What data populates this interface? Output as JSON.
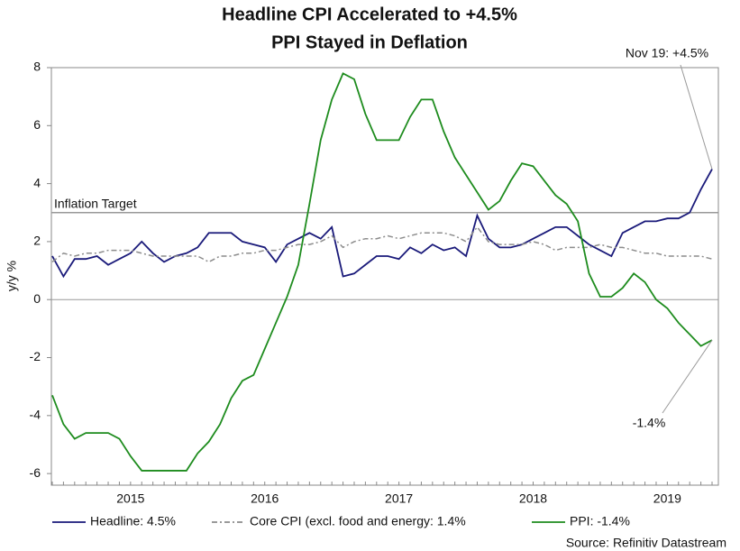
{
  "chart_data": {
    "type": "line",
    "title": [
      "Headline CPI Accelerated to +4.5%",
      "PPI Stayed in Deflation"
    ],
    "y_label": "y/y %",
    "categories": [
      null,
      null,
      null,
      null,
      null,
      null,
      null,
      "2015",
      null,
      null,
      null,
      null,
      null,
      null,
      null,
      null,
      null,
      null,
      null,
      "2016",
      null,
      null,
      null,
      null,
      null,
      null,
      null,
      null,
      null,
      null,
      null,
      "2017",
      null,
      null,
      null,
      null,
      null,
      null,
      null,
      null,
      null,
      null,
      null,
      "2018",
      null,
      null,
      null,
      null,
      null,
      null,
      null,
      null,
      null,
      null,
      null,
      "2019",
      null,
      null,
      null,
      null
    ],
    "ylim": [
      -6.4,
      8
    ],
    "yticks": [
      -6,
      -4,
      -2,
      0,
      2,
      4,
      6,
      8
    ],
    "reference_line": {
      "value": 3,
      "label": "Inflation Target"
    },
    "series": [
      {
        "name": "Headline: 4.5%",
        "color": "#1a1a7a",
        "dash": "solid",
        "values": [
          1.5,
          0.8,
          1.4,
          1.4,
          1.5,
          1.2,
          1.4,
          1.6,
          2.0,
          1.6,
          1.3,
          1.5,
          1.6,
          1.8,
          2.3,
          2.3,
          2.3,
          2.0,
          1.9,
          1.8,
          1.3,
          1.9,
          2.1,
          2.3,
          2.1,
          2.5,
          0.8,
          0.9,
          1.2,
          1.5,
          1.5,
          1.4,
          1.8,
          1.6,
          1.9,
          1.7,
          1.8,
          1.5,
          2.9,
          2.1,
          1.8,
          1.8,
          1.9,
          2.1,
          2.3,
          2.5,
          2.5,
          2.2,
          1.9,
          1.7,
          1.5,
          2.3,
          2.5,
          2.7,
          2.7,
          2.8,
          2.8,
          3.0,
          3.8,
          4.5
        ]
      },
      {
        "name": "Core CPI (excl. food and energy: 1.4%",
        "color": "#8c8c8c",
        "dash": "dashdot",
        "values": [
          1.3,
          1.6,
          1.5,
          1.6,
          1.6,
          1.7,
          1.7,
          1.7,
          1.6,
          1.5,
          1.5,
          1.5,
          1.5,
          1.5,
          1.3,
          1.5,
          1.5,
          1.6,
          1.6,
          1.7,
          1.7,
          1.8,
          1.9,
          1.9,
          2.0,
          2.2,
          1.8,
          2.0,
          2.1,
          2.1,
          2.2,
          2.1,
          2.2,
          2.3,
          2.3,
          2.3,
          2.2,
          2.0,
          2.5,
          2.0,
          1.9,
          1.9,
          1.9,
          2.0,
          1.9,
          1.7,
          1.8,
          1.8,
          1.8,
          1.9,
          1.8,
          1.8,
          1.7,
          1.6,
          1.6,
          1.5,
          1.5,
          1.5,
          1.5,
          1.4
        ]
      },
      {
        "name": "PPI: -1.4%",
        "color": "#1e8c1e",
        "dash": "solid",
        "values": [
          -3.3,
          -4.3,
          -4.8,
          -4.6,
          -4.6,
          -4.6,
          -4.8,
          -5.4,
          -5.9,
          -5.9,
          -5.9,
          -5.9,
          -5.9,
          -5.3,
          -4.9,
          -4.3,
          -3.4,
          -2.8,
          -2.6,
          -1.7,
          -0.8,
          0.1,
          1.2,
          3.3,
          5.5,
          6.9,
          7.8,
          7.6,
          6.4,
          5.5,
          5.5,
          5.5,
          6.3,
          6.9,
          6.9,
          5.8,
          4.9,
          4.3,
          3.7,
          3.1,
          3.4,
          4.1,
          4.7,
          4.6,
          4.1,
          3.6,
          3.3,
          2.7,
          0.9,
          0.1,
          0.1,
          0.4,
          0.9,
          0.6,
          0,
          -0.3,
          -0.8,
          -1.2,
          -1.6,
          -1.4
        ]
      }
    ],
    "annotations": [
      "Nov 19: +4.5%",
      "-1.4%"
    ],
    "source": "Source: Refinitiv Datastream"
  }
}
